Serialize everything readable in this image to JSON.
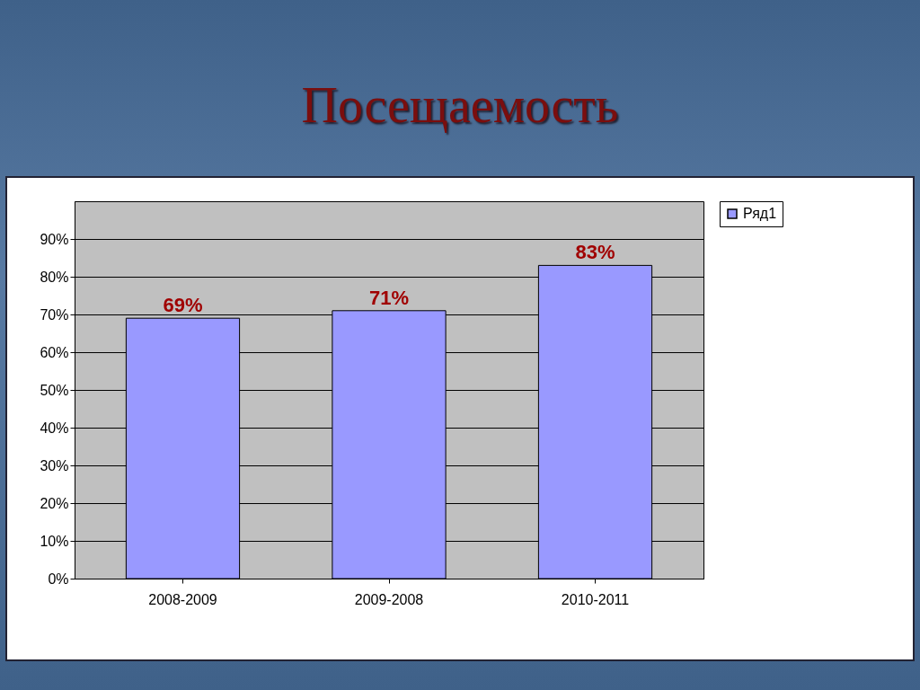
{
  "chart_data": {
    "type": "bar",
    "title": "Посещаемость",
    "categories": [
      "2008-2009",
      "2009-2008",
      "2010-2011"
    ],
    "series": [
      {
        "name": "Ряд1",
        "color": "#9999ff",
        "values": [
          69,
          71,
          83
        ]
      }
    ],
    "value_labels": [
      "69%",
      "71%",
      "83%"
    ],
    "ylim": [
      0,
      100
    ],
    "yticks": [
      {
        "value": 0,
        "label": "0%"
      },
      {
        "value": 10,
        "label": "10%"
      },
      {
        "value": 20,
        "label": "20%"
      },
      {
        "value": 30,
        "label": "30%"
      },
      {
        "value": 40,
        "label": "40%"
      },
      {
        "value": 50,
        "label": "50%"
      },
      {
        "value": 60,
        "label": "60%"
      },
      {
        "value": 70,
        "label": "70%"
      },
      {
        "value": 80,
        "label": "80%"
      },
      {
        "value": 90,
        "label": "90%"
      }
    ],
    "grid": "y",
    "legend": "right"
  }
}
